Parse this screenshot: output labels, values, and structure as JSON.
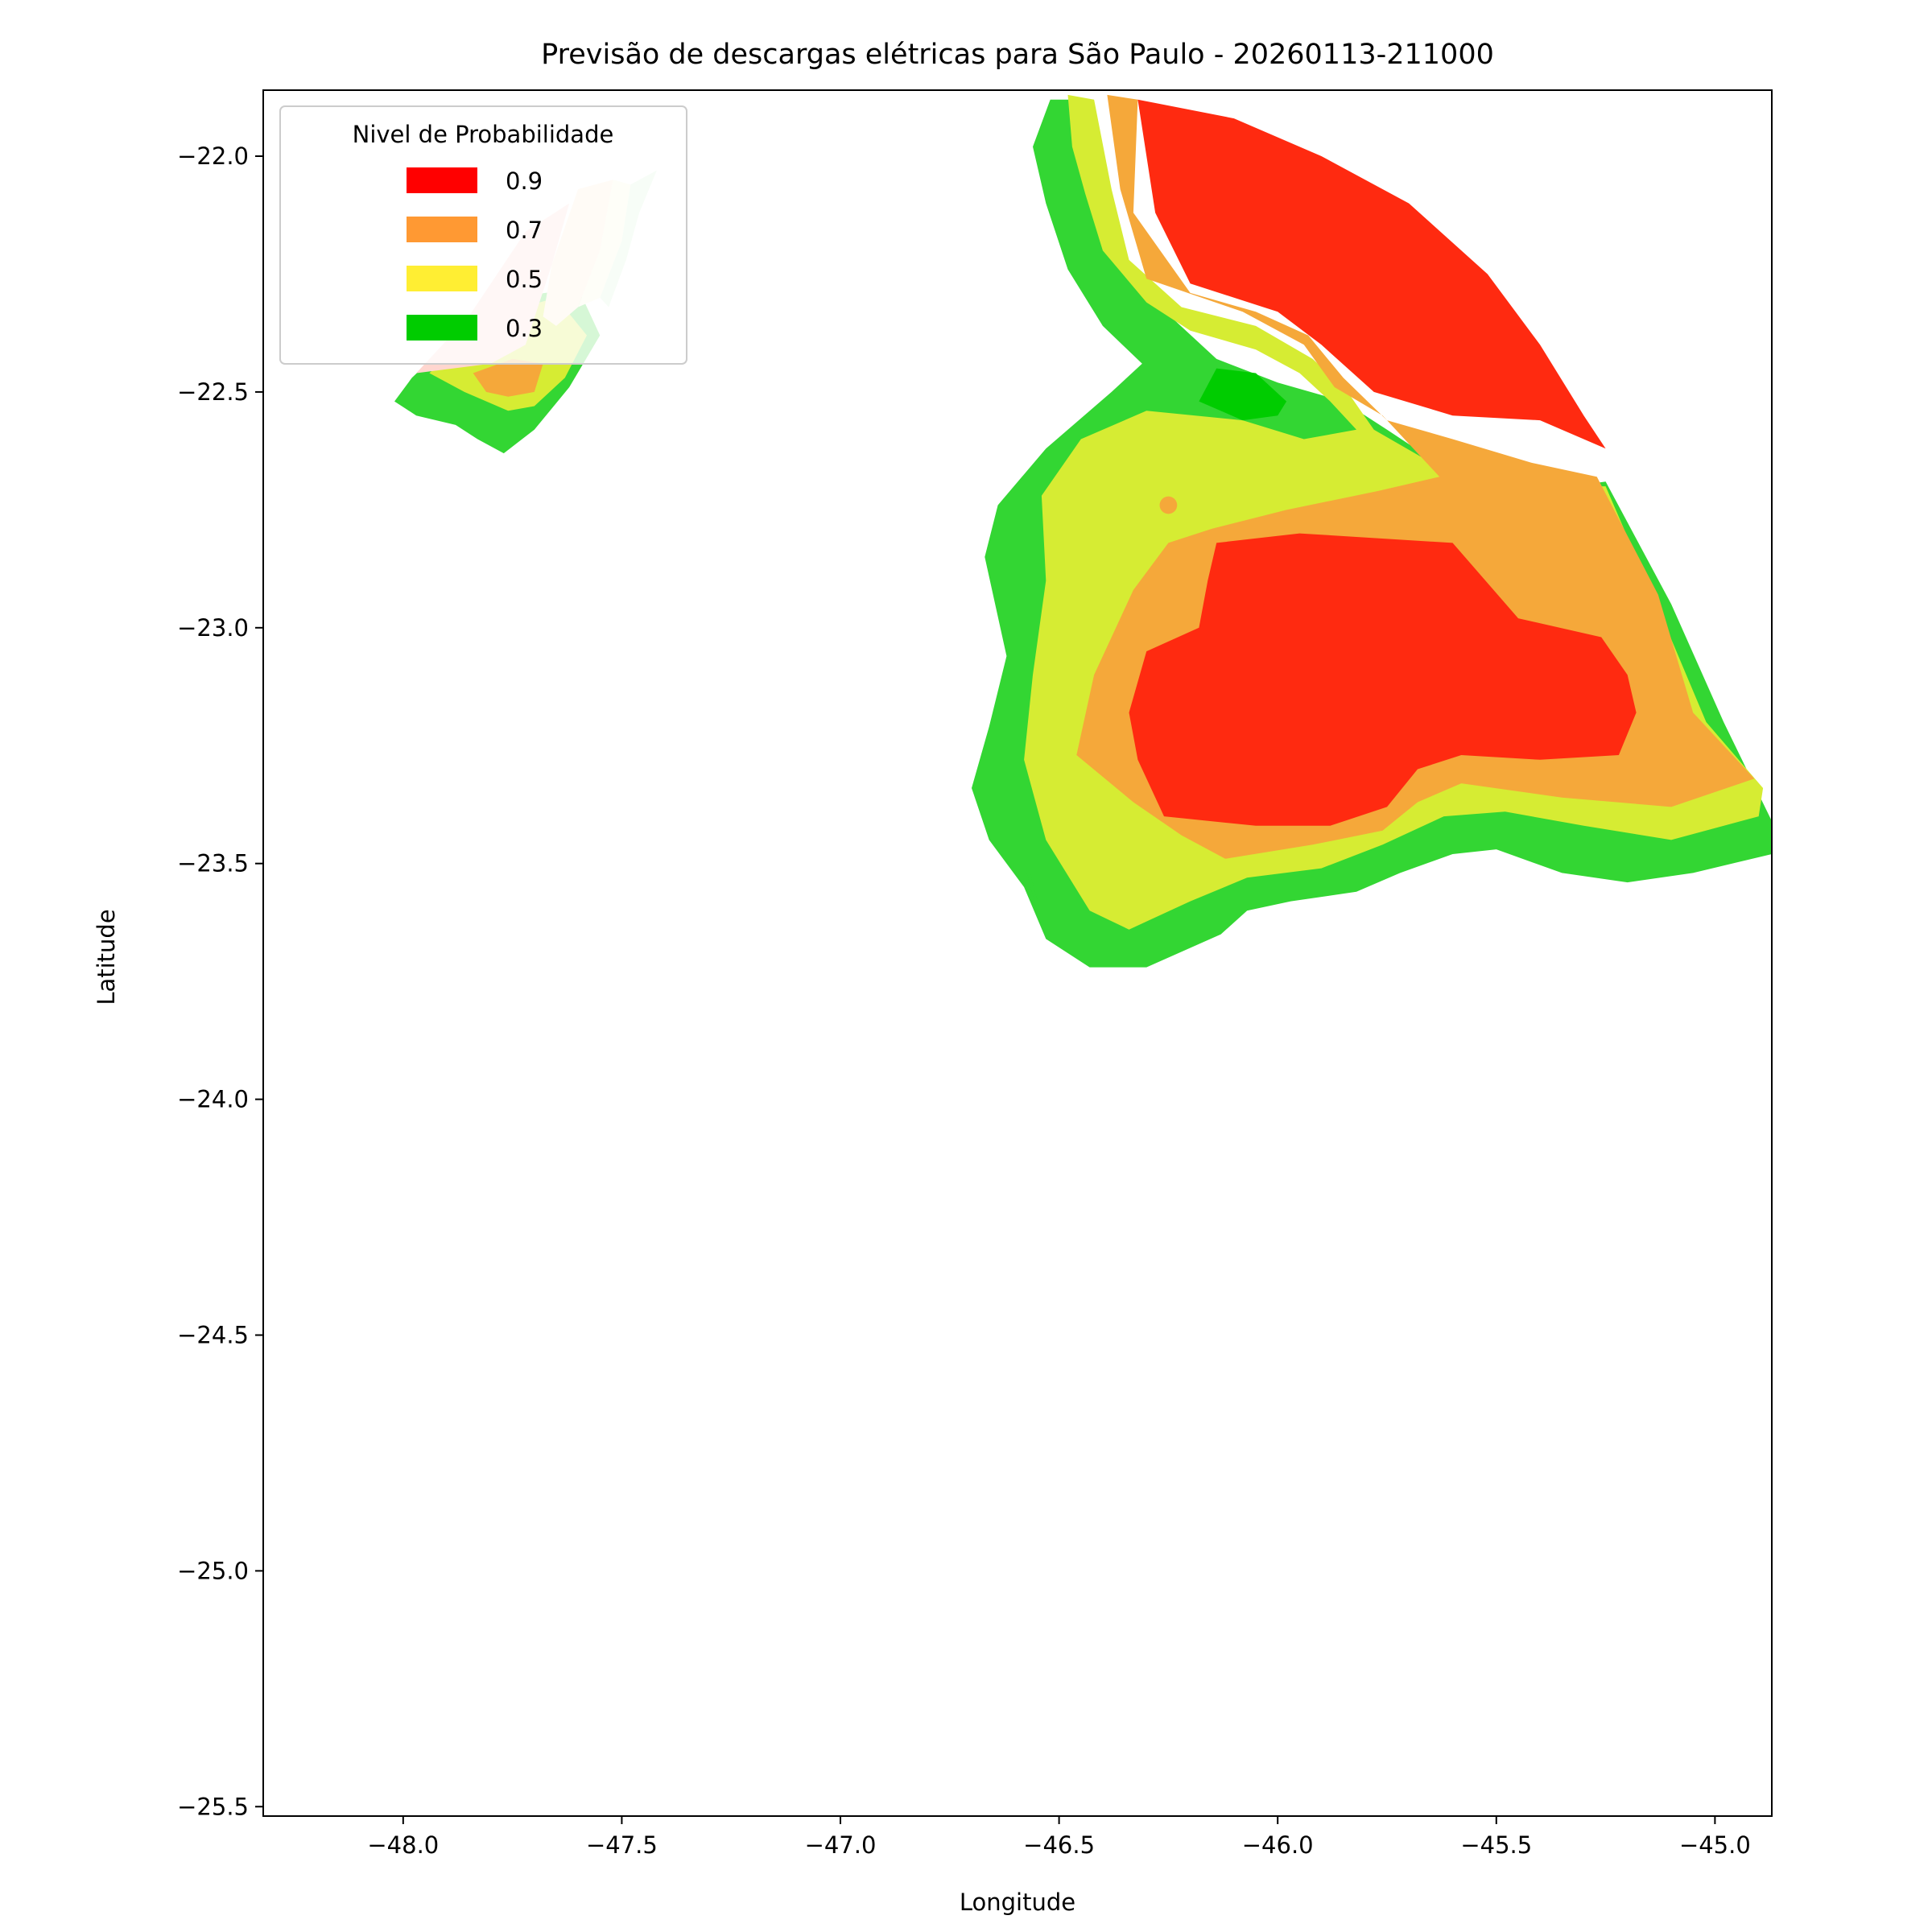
{
  "chart_data": {
    "type": "contour-map",
    "title": "Previsão de descargas elétricas para São Paulo - 20260113-211000",
    "xlabel": "Longitude",
    "ylabel": "Latitude",
    "xlim": [
      -48.32,
      -44.87
    ],
    "ylim": [
      -25.52,
      -21.86
    ],
    "xticks": [
      -48.0,
      -47.5,
      -47.0,
      -46.5,
      -46.0,
      -45.5,
      -45.0
    ],
    "xtick_labels": [
      "−48.0",
      "−47.5",
      "−47.0",
      "−46.5",
      "−46.0",
      "−45.5",
      "−45.0"
    ],
    "yticks": [
      -22.0,
      -22.5,
      -23.0,
      -23.5,
      -24.0,
      -24.5,
      -25.0,
      -25.5
    ],
    "ytick_labels": [
      "−22.0",
      "−22.5",
      "−23.0",
      "−23.5",
      "−24.0",
      "−24.5",
      "−25.0",
      "−25.5"
    ],
    "legend": {
      "title": "Nivel de Probabilidade",
      "placement": "upper-left",
      "entries": [
        {
          "label": "0.9",
          "color": "#ff0000"
        },
        {
          "label": "0.7",
          "color": "#ff9933"
        },
        {
          "label": "0.5",
          "color": "#ffee33"
        },
        {
          "label": "0.3",
          "color": "#00cc00"
        }
      ]
    },
    "regions": [
      {
        "name": "main-03",
        "level": 0.3,
        "color": "#33d633",
        "points": [
          [
            -46.52,
            -21.88
          ],
          [
            -46.44,
            -21.88
          ],
          [
            -46.4,
            -22.05
          ],
          [
            -46.38,
            -22.2
          ],
          [
            -46.28,
            -22.31
          ],
          [
            -46.14,
            -22.43
          ],
          [
            -46.0,
            -22.48
          ],
          [
            -45.85,
            -22.52
          ],
          [
            -45.75,
            -22.58
          ],
          [
            -45.62,
            -22.66
          ],
          [
            -45.48,
            -22.72
          ],
          [
            -45.25,
            -22.69
          ],
          [
            -45.1,
            -22.95
          ],
          [
            -44.98,
            -23.2
          ],
          [
            -44.87,
            -23.41
          ],
          [
            -44.87,
            -23.48
          ],
          [
            -45.05,
            -23.52
          ],
          [
            -45.2,
            -23.54
          ],
          [
            -45.35,
            -23.52
          ],
          [
            -45.5,
            -23.47
          ],
          [
            -45.6,
            -23.48
          ],
          [
            -45.72,
            -23.52
          ],
          [
            -45.82,
            -23.56
          ],
          [
            -45.97,
            -23.58
          ],
          [
            -46.07,
            -23.6
          ],
          [
            -46.13,
            -23.65
          ],
          [
            -46.3,
            -23.72
          ],
          [
            -46.43,
            -23.72
          ],
          [
            -46.53,
            -23.66
          ],
          [
            -46.58,
            -23.55
          ],
          [
            -46.66,
            -23.45
          ],
          [
            -46.7,
            -23.34
          ],
          [
            -46.66,
            -23.21
          ],
          [
            -46.62,
            -23.06
          ],
          [
            -46.67,
            -22.85
          ],
          [
            -46.64,
            -22.74
          ],
          [
            -46.53,
            -22.62
          ],
          [
            -46.38,
            -22.5
          ],
          [
            -46.31,
            -22.44
          ],
          [
            -46.4,
            -22.36
          ],
          [
            -46.48,
            -22.24
          ],
          [
            -46.53,
            -22.1
          ],
          [
            -46.56,
            -21.98
          ]
        ]
      },
      {
        "name": "main-05",
        "level": 0.5,
        "color": "#d6ec33",
        "points": [
          [
            -46.48,
            -21.87
          ],
          [
            -46.42,
            -21.88
          ],
          [
            -46.38,
            -22.07
          ],
          [
            -46.34,
            -22.22
          ],
          [
            -46.22,
            -22.32
          ],
          [
            -46.05,
            -22.36
          ],
          [
            -45.92,
            -22.43
          ],
          [
            -45.84,
            -22.5
          ],
          [
            -45.78,
            -22.58
          ],
          [
            -45.63,
            -22.66
          ],
          [
            -45.45,
            -22.7
          ],
          [
            -45.25,
            -22.7
          ],
          [
            -45.12,
            -22.98
          ],
          [
            -45.02,
            -23.2
          ],
          [
            -44.89,
            -23.34
          ],
          [
            -44.9,
            -23.4
          ],
          [
            -45.1,
            -23.45
          ],
          [
            -45.3,
            -23.42
          ],
          [
            -45.48,
            -23.39
          ],
          [
            -45.62,
            -23.4
          ],
          [
            -45.76,
            -23.46
          ],
          [
            -45.9,
            -23.51
          ],
          [
            -46.07,
            -23.53
          ],
          [
            -46.2,
            -23.58
          ],
          [
            -46.34,
            -23.64
          ],
          [
            -46.43,
            -23.6
          ],
          [
            -46.53,
            -23.45
          ],
          [
            -46.58,
            -23.28
          ],
          [
            -46.56,
            -23.1
          ],
          [
            -46.53,
            -22.9
          ],
          [
            -46.54,
            -22.72
          ],
          [
            -46.45,
            -22.6
          ],
          [
            -46.3,
            -22.54
          ],
          [
            -46.08,
            -22.56
          ],
          [
            -45.94,
            -22.6
          ],
          [
            -45.82,
            -22.58
          ],
          [
            -45.88,
            -22.52
          ],
          [
            -45.95,
            -22.46
          ],
          [
            -46.05,
            -22.41
          ],
          [
            -46.2,
            -22.37
          ],
          [
            -46.3,
            -22.31
          ],
          [
            -46.4,
            -22.2
          ],
          [
            -46.44,
            -22.08
          ],
          [
            -46.47,
            -21.98
          ]
        ]
      },
      {
        "name": "main-07",
        "level": 0.7,
        "color": "#f5a83a",
        "points": [
          [
            -46.39,
            -21.87
          ],
          [
            -46.32,
            -21.88
          ],
          [
            -46.33,
            -22.12
          ],
          [
            -46.2,
            -22.29
          ],
          [
            -46.05,
            -22.33
          ],
          [
            -45.93,
            -22.38
          ],
          [
            -45.85,
            -22.47
          ],
          [
            -45.75,
            -22.56
          ],
          [
            -45.6,
            -22.6
          ],
          [
            -45.42,
            -22.65
          ],
          [
            -45.27,
            -22.68
          ],
          [
            -45.13,
            -22.93
          ],
          [
            -45.05,
            -23.18
          ],
          [
            -44.91,
            -23.32
          ],
          [
            -45.1,
            -23.38
          ],
          [
            -45.35,
            -23.36
          ],
          [
            -45.58,
            -23.33
          ],
          [
            -45.68,
            -23.37
          ],
          [
            -45.76,
            -23.43
          ],
          [
            -45.92,
            -23.46
          ],
          [
            -46.12,
            -23.49
          ],
          [
            -46.22,
            -23.44
          ],
          [
            -46.33,
            -23.37
          ],
          [
            -46.46,
            -23.27
          ],
          [
            -46.42,
            -23.1
          ],
          [
            -46.33,
            -22.92
          ],
          [
            -46.25,
            -22.82
          ],
          [
            -46.15,
            -22.79
          ],
          [
            -45.98,
            -22.75
          ],
          [
            -45.77,
            -22.71
          ],
          [
            -45.63,
            -22.68
          ],
          [
            -45.76,
            -22.55
          ],
          [
            -45.87,
            -22.49
          ],
          [
            -45.94,
            -22.4
          ],
          [
            -46.08,
            -22.33
          ],
          [
            -46.3,
            -22.26
          ],
          [
            -46.36,
            -22.07
          ]
        ]
      },
      {
        "name": "main-09-north",
        "level": 0.9,
        "color": "#ff2a10",
        "points": [
          [
            -46.32,
            -21.88
          ],
          [
            -46.1,
            -21.92
          ],
          [
            -45.9,
            -22.0
          ],
          [
            -45.7,
            -22.1
          ],
          [
            -45.52,
            -22.25
          ],
          [
            -45.4,
            -22.4
          ],
          [
            -45.3,
            -22.55
          ],
          [
            -45.25,
            -22.62
          ],
          [
            -45.4,
            -22.56
          ],
          [
            -45.6,
            -22.55
          ],
          [
            -45.78,
            -22.5
          ],
          [
            -45.9,
            -22.4
          ],
          [
            -46.0,
            -22.33
          ],
          [
            -46.2,
            -22.27
          ],
          [
            -46.28,
            -22.12
          ]
        ]
      },
      {
        "name": "main-09-south",
        "level": 0.9,
        "color": "#ff2a10",
        "points": [
          [
            -46.14,
            -22.82
          ],
          [
            -45.95,
            -22.8
          ],
          [
            -45.6,
            -22.82
          ],
          [
            -45.45,
            -22.98
          ],
          [
            -45.26,
            -23.02
          ],
          [
            -45.2,
            -23.1
          ],
          [
            -45.18,
            -23.18
          ],
          [
            -45.22,
            -23.27
          ],
          [
            -45.4,
            -23.28
          ],
          [
            -45.58,
            -23.27
          ],
          [
            -45.68,
            -23.3
          ],
          [
            -45.75,
            -23.38
          ],
          [
            -45.88,
            -23.42
          ],
          [
            -46.05,
            -23.42
          ],
          [
            -46.26,
            -23.4
          ],
          [
            -46.32,
            -23.28
          ],
          [
            -46.34,
            -23.18
          ],
          [
            -46.3,
            -23.05
          ],
          [
            -46.18,
            -23.0
          ],
          [
            -46.16,
            -22.9
          ]
        ]
      },
      {
        "name": "main-03-core",
        "level": 0.3,
        "color": "#00cc00",
        "points": [
          [
            -46.18,
            -22.52
          ],
          [
            -46.14,
            -22.45
          ],
          [
            -46.05,
            -22.46
          ],
          [
            -45.98,
            -22.52
          ],
          [
            -46.0,
            -22.55
          ],
          [
            -46.08,
            -22.56
          ]
        ]
      },
      {
        "name": "west-03",
        "level": 0.3,
        "color": "#33d633",
        "points": [
          [
            -47.98,
            -22.47
          ],
          [
            -47.9,
            -22.4
          ],
          [
            -47.75,
            -22.3
          ],
          [
            -47.6,
            -22.28
          ],
          [
            -47.55,
            -22.38
          ],
          [
            -47.62,
            -22.49
          ],
          [
            -47.7,
            -22.58
          ],
          [
            -47.77,
            -22.63
          ],
          [
            -47.83,
            -22.6
          ],
          [
            -47.88,
            -22.57
          ],
          [
            -47.97,
            -22.55
          ],
          [
            -48.02,
            -22.52
          ]
        ]
      },
      {
        "name": "west-05",
        "level": 0.5,
        "color": "#d6ec33",
        "points": [
          [
            -47.94,
            -22.46
          ],
          [
            -47.8,
            -22.34
          ],
          [
            -47.65,
            -22.3
          ],
          [
            -47.58,
            -22.38
          ],
          [
            -47.63,
            -22.47
          ],
          [
            -47.7,
            -22.53
          ],
          [
            -47.76,
            -22.54
          ],
          [
            -47.86,
            -22.5
          ]
        ]
      },
      {
        "name": "west-07",
        "level": 0.7,
        "color": "#f5a83a",
        "points": [
          [
            -47.84,
            -22.46
          ],
          [
            -47.75,
            -22.43
          ],
          [
            -47.68,
            -22.44
          ],
          [
            -47.7,
            -22.5
          ],
          [
            -47.76,
            -22.51
          ],
          [
            -47.81,
            -22.5
          ]
        ]
      },
      {
        "name": "west-fade-09",
        "level": 0.9,
        "color": "#ffd6cf",
        "points": [
          [
            -47.97,
            -22.46
          ],
          [
            -47.85,
            -22.34
          ],
          [
            -47.72,
            -22.16
          ],
          [
            -47.62,
            -22.1
          ],
          [
            -47.66,
            -22.23
          ],
          [
            -47.72,
            -22.4
          ],
          [
            -47.8,
            -22.44
          ]
        ]
      },
      {
        "name": "west-fade-07",
        "level": 0.7,
        "color": "#fde8d0",
        "points": [
          [
            -47.66,
            -22.23
          ],
          [
            -47.6,
            -22.07
          ],
          [
            -47.52,
            -22.05
          ],
          [
            -47.55,
            -22.2
          ],
          [
            -47.6,
            -22.32
          ],
          [
            -47.65,
            -22.36
          ],
          [
            -47.68,
            -22.34
          ]
        ]
      },
      {
        "name": "west-fade-05",
        "level": 0.5,
        "color": "#f9f7dc",
        "points": [
          [
            -47.6,
            -22.32
          ],
          [
            -47.55,
            -22.2
          ],
          [
            -47.52,
            -22.05
          ],
          [
            -47.48,
            -22.06
          ],
          [
            -47.5,
            -22.18
          ],
          [
            -47.55,
            -22.3
          ]
        ]
      },
      {
        "name": "west-fade-03",
        "level": 0.3,
        "color": "#d5f5d6",
        "points": [
          [
            -47.55,
            -22.3
          ],
          [
            -47.5,
            -22.18
          ],
          [
            -47.48,
            -22.06
          ],
          [
            -47.42,
            -22.03
          ],
          [
            -47.46,
            -22.12
          ],
          [
            -47.49,
            -22.22
          ],
          [
            -47.53,
            -22.32
          ]
        ]
      }
    ],
    "spots": [
      {
        "name": "orange-spot",
        "level": 0.7,
        "color": "#f5a83a",
        "x": -46.25,
        "y": -22.74,
        "r": 0.02
      }
    ],
    "dash": {
      "name": "green-dash",
      "color": "#33d633",
      "from": [
        -46.57,
        -23.52
      ],
      "to": [
        -46.55,
        -23.59
      ]
    }
  }
}
